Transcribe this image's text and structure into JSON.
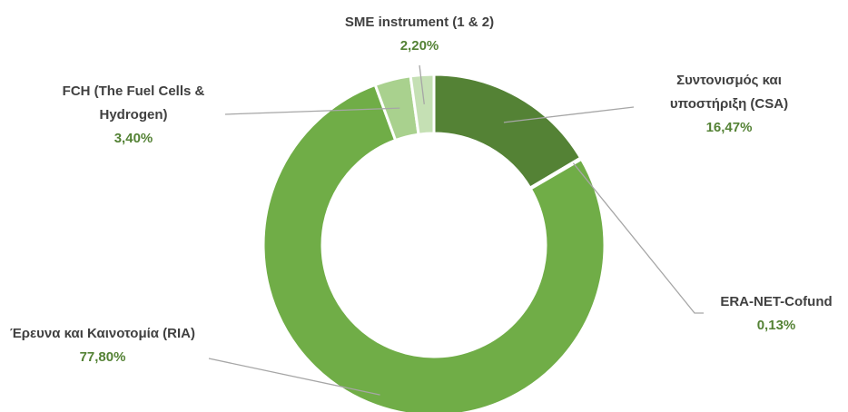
{
  "chart_data": {
    "type": "pie",
    "donut": true,
    "categories": [
      "Συντονισμός και υποστήριξη (CSA)",
      "ERA-NET-Cofund",
      "Έρευνα και Καινοτομία (RIA)",
      "FCH (The Fuel Cells & Hydrogen)",
      "SME instrument (1 & 2)"
    ],
    "values": [
      16.47,
      0.13,
      77.8,
      3.4,
      2.2
    ],
    "value_labels": [
      "16,47%",
      "0,13%",
      "77,80%",
      "3,40%",
      "2,20%"
    ],
    "colors": [
      "#548235",
      "#385723",
      "#70ad47",
      "#a9d18e",
      "#c5e0b4"
    ]
  }
}
